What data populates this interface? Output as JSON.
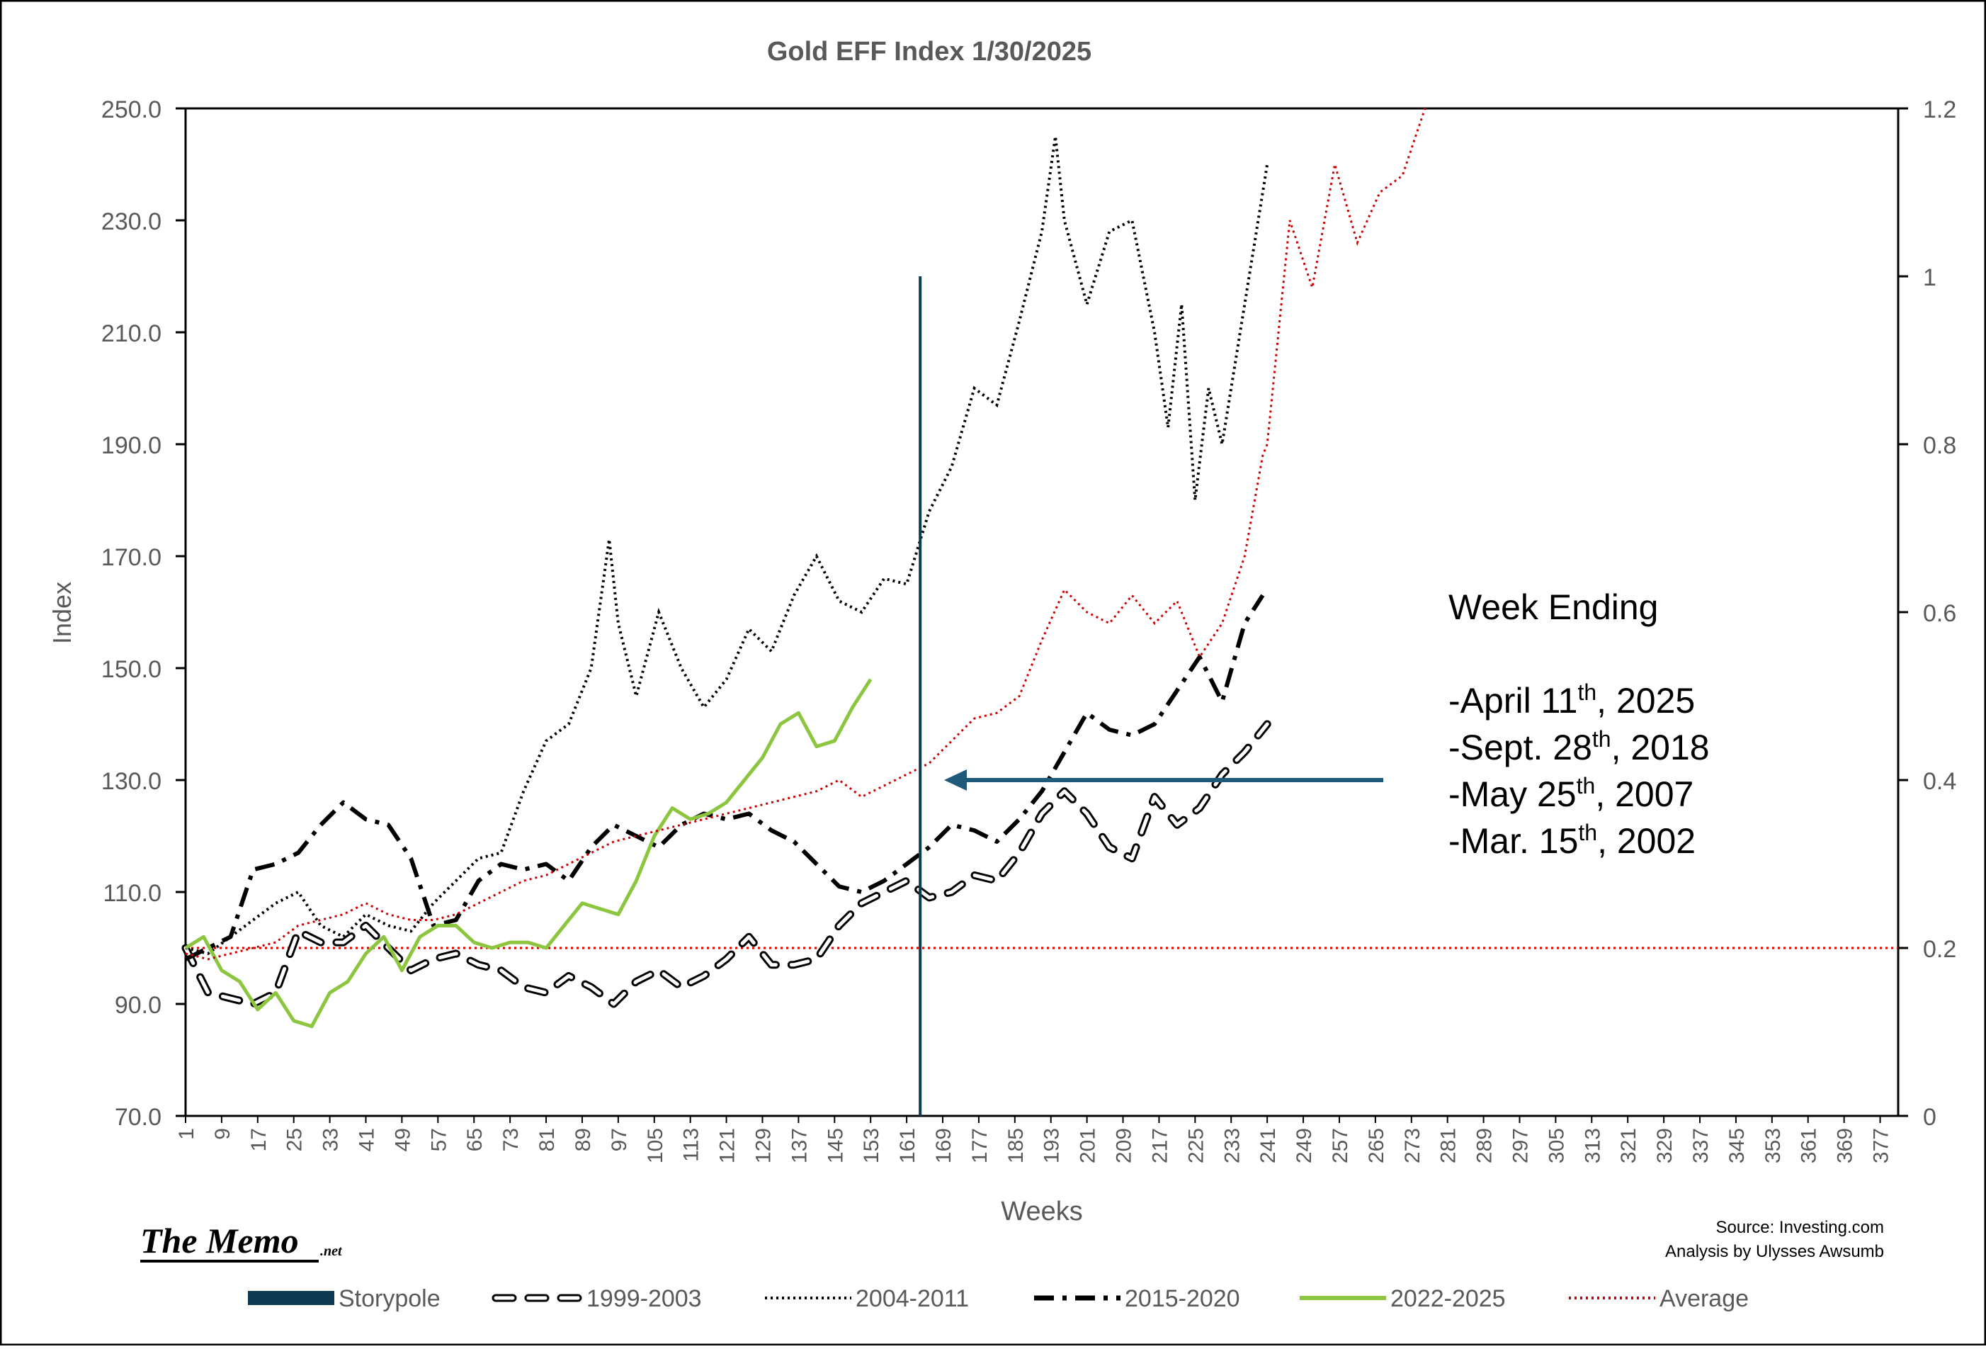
{
  "chart_data": {
    "type": "line",
    "title": "Gold EFF Index 1/30/2025",
    "xlabel": "Weeks",
    "ylabel": "Index",
    "xlim": [
      1,
      381
    ],
    "ylim": [
      70,
      250
    ],
    "y2lim": [
      0,
      1.2
    ],
    "yticks": [
      70,
      90,
      110,
      130,
      150,
      170,
      190,
      210,
      230,
      250
    ],
    "ytick_labels": [
      "70.0",
      "90.0",
      "110.0",
      "130.0",
      "150.0",
      "170.0",
      "190.0",
      "210.0",
      "230.0",
      "250.0"
    ],
    "y2ticks": [
      0,
      0.2,
      0.4,
      0.6,
      0.8,
      1.0,
      1.2
    ],
    "y2tick_labels": [
      "0",
      "0.2",
      "0.4",
      "0.6",
      "0.8",
      "1",
      "1.2"
    ],
    "xticks": [
      1,
      9,
      17,
      25,
      33,
      41,
      49,
      57,
      65,
      73,
      81,
      89,
      97,
      105,
      113,
      121,
      129,
      137,
      145,
      153,
      161,
      169,
      177,
      185,
      193,
      201,
      209,
      217,
      225,
      233,
      241,
      249,
      257,
      265,
      273,
      281,
      289,
      297,
      305,
      313,
      321,
      329,
      337,
      345,
      353,
      361,
      369,
      377
    ],
    "storypole": {
      "week": 164,
      "y2_top": 1.0
    },
    "reference_line_y2": 0.2,
    "series": [
      {
        "name": "1999-2003",
        "color": "#000000",
        "style": "outline-dash",
        "x": [
          1,
          6,
          11,
          16,
          21,
          26,
          31,
          36,
          41,
          46,
          51,
          56,
          61,
          66,
          71,
          76,
          81,
          86,
          91,
          96,
          101,
          106,
          111,
          116,
          121,
          126,
          131,
          136,
          141,
          146,
          151,
          156,
          161,
          166,
          171,
          176,
          181,
          186,
          191,
          196,
          201,
          206,
          211,
          216,
          221,
          226,
          231,
          236,
          241
        ],
        "values": [
          100,
          92,
          91,
          90,
          92,
          103,
          101,
          101,
          104,
          100,
          96,
          98,
          99,
          97,
          96,
          93,
          92,
          95,
          93,
          90,
          94,
          96,
          93,
          95,
          98,
          102,
          97,
          97,
          98,
          104,
          108,
          110,
          112,
          109,
          110,
          113,
          112,
          117,
          124,
          128,
          124,
          118,
          116,
          127,
          122,
          125,
          131,
          135,
          140
        ]
      },
      {
        "name": "2004-2011",
        "color": "#000000",
        "style": "dotted",
        "x": [
          1,
          6,
          11,
          16,
          21,
          26,
          31,
          36,
          41,
          46,
          51,
          56,
          61,
          66,
          71,
          76,
          81,
          86,
          91,
          95,
          97,
          101,
          106,
          111,
          116,
          121,
          126,
          131,
          136,
          141,
          146,
          151,
          156,
          161,
          166,
          171,
          176,
          181,
          186,
          191,
          194,
          196,
          201,
          206,
          211,
          216,
          219,
          222,
          225,
          228,
          231,
          236,
          241
        ],
        "values": [
          100,
          99,
          102,
          105,
          108,
          110,
          104,
          102,
          106,
          104,
          103,
          108,
          112,
          116,
          117,
          128,
          137,
          140,
          150,
          173,
          158,
          145,
          160,
          150,
          143,
          148,
          157,
          153,
          163,
          170,
          162,
          160,
          166,
          165,
          178,
          186,
          200,
          197,
          212,
          228,
          245,
          230,
          215,
          228,
          230,
          210,
          193,
          215,
          180,
          200,
          190,
          215,
          240
        ]
      },
      {
        "name": "2015-2020",
        "color": "#000000",
        "style": "dash-dot",
        "x": [
          1,
          6,
          11,
          16,
          21,
          26,
          31,
          36,
          41,
          46,
          51,
          56,
          61,
          66,
          71,
          76,
          81,
          86,
          91,
          96,
          101,
          106,
          111,
          116,
          121,
          126,
          131,
          136,
          141,
          146,
          151,
          156,
          161,
          166,
          171,
          176,
          181,
          186,
          191,
          196,
          201,
          206,
          211,
          216,
          221,
          226,
          231,
          236,
          240
        ],
        "values": [
          98,
          100,
          102,
          114,
          115,
          117,
          122,
          126,
          123,
          122,
          116,
          104,
          105,
          112,
          115,
          114,
          115,
          112,
          118,
          122,
          120,
          118,
          122,
          124,
          123,
          124,
          121,
          119,
          115,
          111,
          110,
          112,
          115,
          118,
          122,
          121,
          119,
          123,
          128,
          135,
          142,
          139,
          138,
          140,
          146,
          152,
          144,
          158,
          163
        ]
      },
      {
        "name": "2022-2025",
        "color": "#8cc63f",
        "style": "solid",
        "x": [
          1,
          5,
          9,
          13,
          17,
          21,
          25,
          29,
          33,
          37,
          41,
          45,
          49,
          53,
          57,
          61,
          65,
          69,
          73,
          77,
          81,
          85,
          89,
          93,
          97,
          101,
          105,
          109,
          113,
          117,
          121,
          125,
          129,
          133,
          137,
          141,
          145,
          149,
          153
        ],
        "values": [
          100,
          102,
          96,
          94,
          89,
          92,
          87,
          86,
          92,
          94,
          99,
          102,
          96,
          102,
          104,
          104,
          101,
          100,
          101,
          101,
          100,
          104,
          108,
          107,
          106,
          112,
          120,
          125,
          123,
          124,
          126,
          130,
          134,
          140,
          142,
          136,
          137,
          143,
          148
        ]
      },
      {
        "name": "Average",
        "color": "#cc0000",
        "style": "dotted",
        "x": [
          1,
          6,
          11,
          16,
          21,
          26,
          31,
          36,
          41,
          46,
          51,
          56,
          61,
          66,
          71,
          76,
          81,
          86,
          91,
          96,
          101,
          106,
          111,
          116,
          121,
          126,
          131,
          136,
          141,
          146,
          151,
          156,
          161,
          166,
          171,
          176,
          181,
          186,
          191,
          196,
          201,
          206,
          211,
          216,
          221,
          226,
          231,
          236,
          240,
          241,
          246,
          251,
          256,
          261,
          266,
          271,
          276
        ],
        "values": [
          99,
          98,
          99,
          100,
          101,
          104,
          105,
          106,
          108,
          106,
          105,
          105,
          106,
          108,
          110,
          112,
          113,
          115,
          117,
          119,
          120,
          121,
          122,
          123,
          124,
          125,
          126,
          127,
          128,
          130,
          127,
          129,
          131,
          133,
          137,
          141,
          142,
          145,
          155,
          164,
          160,
          158,
          163,
          158,
          162,
          152,
          158,
          170,
          188,
          190,
          230,
          218,
          240,
          226,
          235,
          238,
          250
        ]
      }
    ],
    "annotation_lines": [
      "Week Ending",
      "",
      "-April 11th, 2025",
      "-Sept. 28th, 2018",
      "-May 25th, 2007",
      "-Mar. 15th, 2002"
    ],
    "legend": {
      "placement": "bottom",
      "entries": [
        "Storypole",
        "1999-2003",
        "2004-2011",
        "2015-2020",
        "2022-2025",
        "Average"
      ]
    }
  },
  "annotation": {
    "heading": "Week Ending",
    "dates": [
      {
        "prefix": "-April 11",
        "sup": "th",
        "suffix": ", 2025"
      },
      {
        "prefix": "-Sept. 28",
        "sup": "th",
        "suffix": ", 2018"
      },
      {
        "prefix": "-May 25",
        "sup": "th",
        "suffix": ", 2007"
      },
      {
        "prefix": "-Mar. 15",
        "sup": "th",
        "suffix": ", 2002"
      }
    ]
  },
  "source": {
    "line1": "Source: Investing.com",
    "line2": "Analysis by Ulysses Awsumb"
  },
  "logo": {
    "main": "The Memo",
    "suffix": ".net"
  },
  "colors": {
    "storypole": "#0e3a52",
    "arrow": "#1f5a7a",
    "axis_text": "#595959",
    "frame": "#000000"
  }
}
